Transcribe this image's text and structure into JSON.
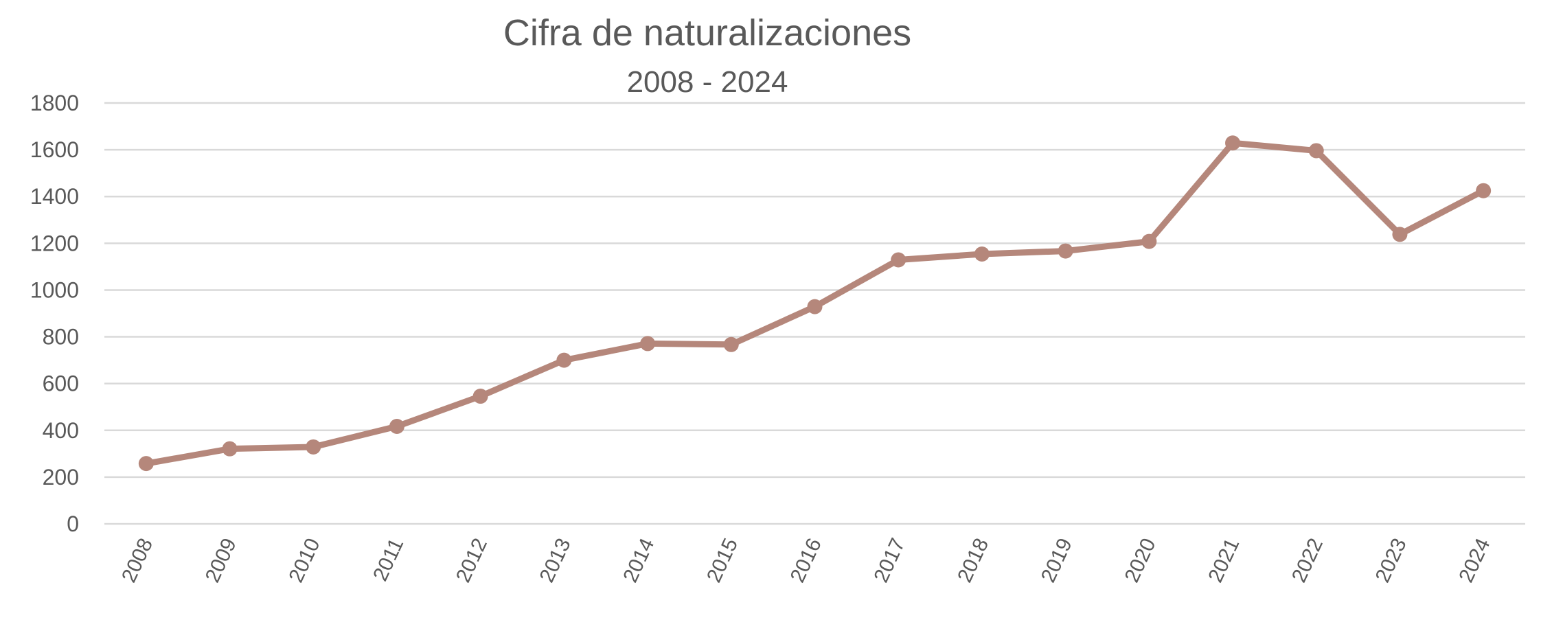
{
  "chart_data": {
    "type": "line",
    "title": "Cifra de naturalizaciones",
    "subtitle": "2008 - 2024",
    "xlabel": "",
    "ylabel": "",
    "categories": [
      "2008",
      "2009",
      "2010",
      "2011",
      "2012",
      "2013",
      "2014",
      "2015",
      "2016",
      "2017",
      "2018",
      "2019",
      "2020",
      "2021",
      "2022",
      "2023",
      "2024"
    ],
    "values": [
      258,
      321,
      329,
      417,
      546,
      700,
      771,
      767,
      929,
      1129,
      1154,
      1167,
      1208,
      1629,
      1596,
      1238,
      1425
    ],
    "ylim": [
      0,
      1800
    ],
    "yticks": [
      "0",
      "200",
      "400",
      "600",
      "800",
      "1000",
      "1200",
      "1400",
      "1600",
      "1800"
    ],
    "grid": true,
    "legend": "none",
    "colors": {
      "line": "#b5877b",
      "grid": "#d9d9d9",
      "text": "#595959"
    }
  }
}
